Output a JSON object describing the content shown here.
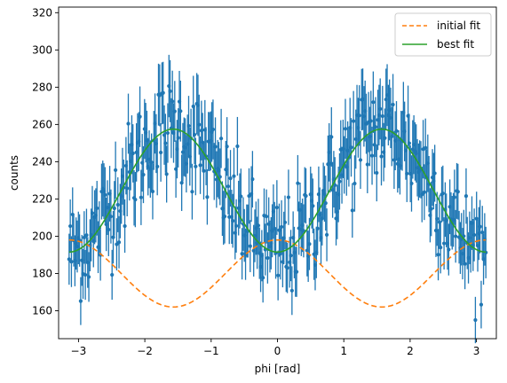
{
  "chart_data": {
    "type": "scatter",
    "xlabel": "phi [rad]",
    "ylabel": "counts",
    "xlim": [
      -3.3,
      3.3
    ],
    "ylim": [
      145,
      323
    ],
    "xticks": [
      -3,
      -2,
      -1,
      0,
      1,
      2,
      3
    ],
    "yticks": [
      160,
      180,
      200,
      220,
      240,
      260,
      280,
      300,
      320
    ],
    "grid": false,
    "legend_position": "top-right",
    "series": [
      {
        "kind": "errorbar",
        "color": "#1f77b4",
        "x_range": [
          -3.1416,
          3.1416
        ],
        "n_points": 360,
        "approx_model": "225 - 33*cos(2*phi) + noise",
        "y_range_observed": [
          155,
          298
        ],
        "error_size_approx": "sqrt(counts)"
      },
      {
        "name": "initial fit",
        "kind": "line",
        "style": "dashed",
        "color": "#ff7f0e",
        "model": "180 + 18*cos(2*phi)",
        "x_range": [
          -3.1416,
          3.1416
        ]
      },
      {
        "name": "best fit",
        "kind": "line",
        "style": "solid",
        "color": "#2ca02c",
        "model": "224.5 - 33*cos(2*phi)",
        "x_range": [
          -3.1416,
          3.1416
        ]
      }
    ]
  }
}
